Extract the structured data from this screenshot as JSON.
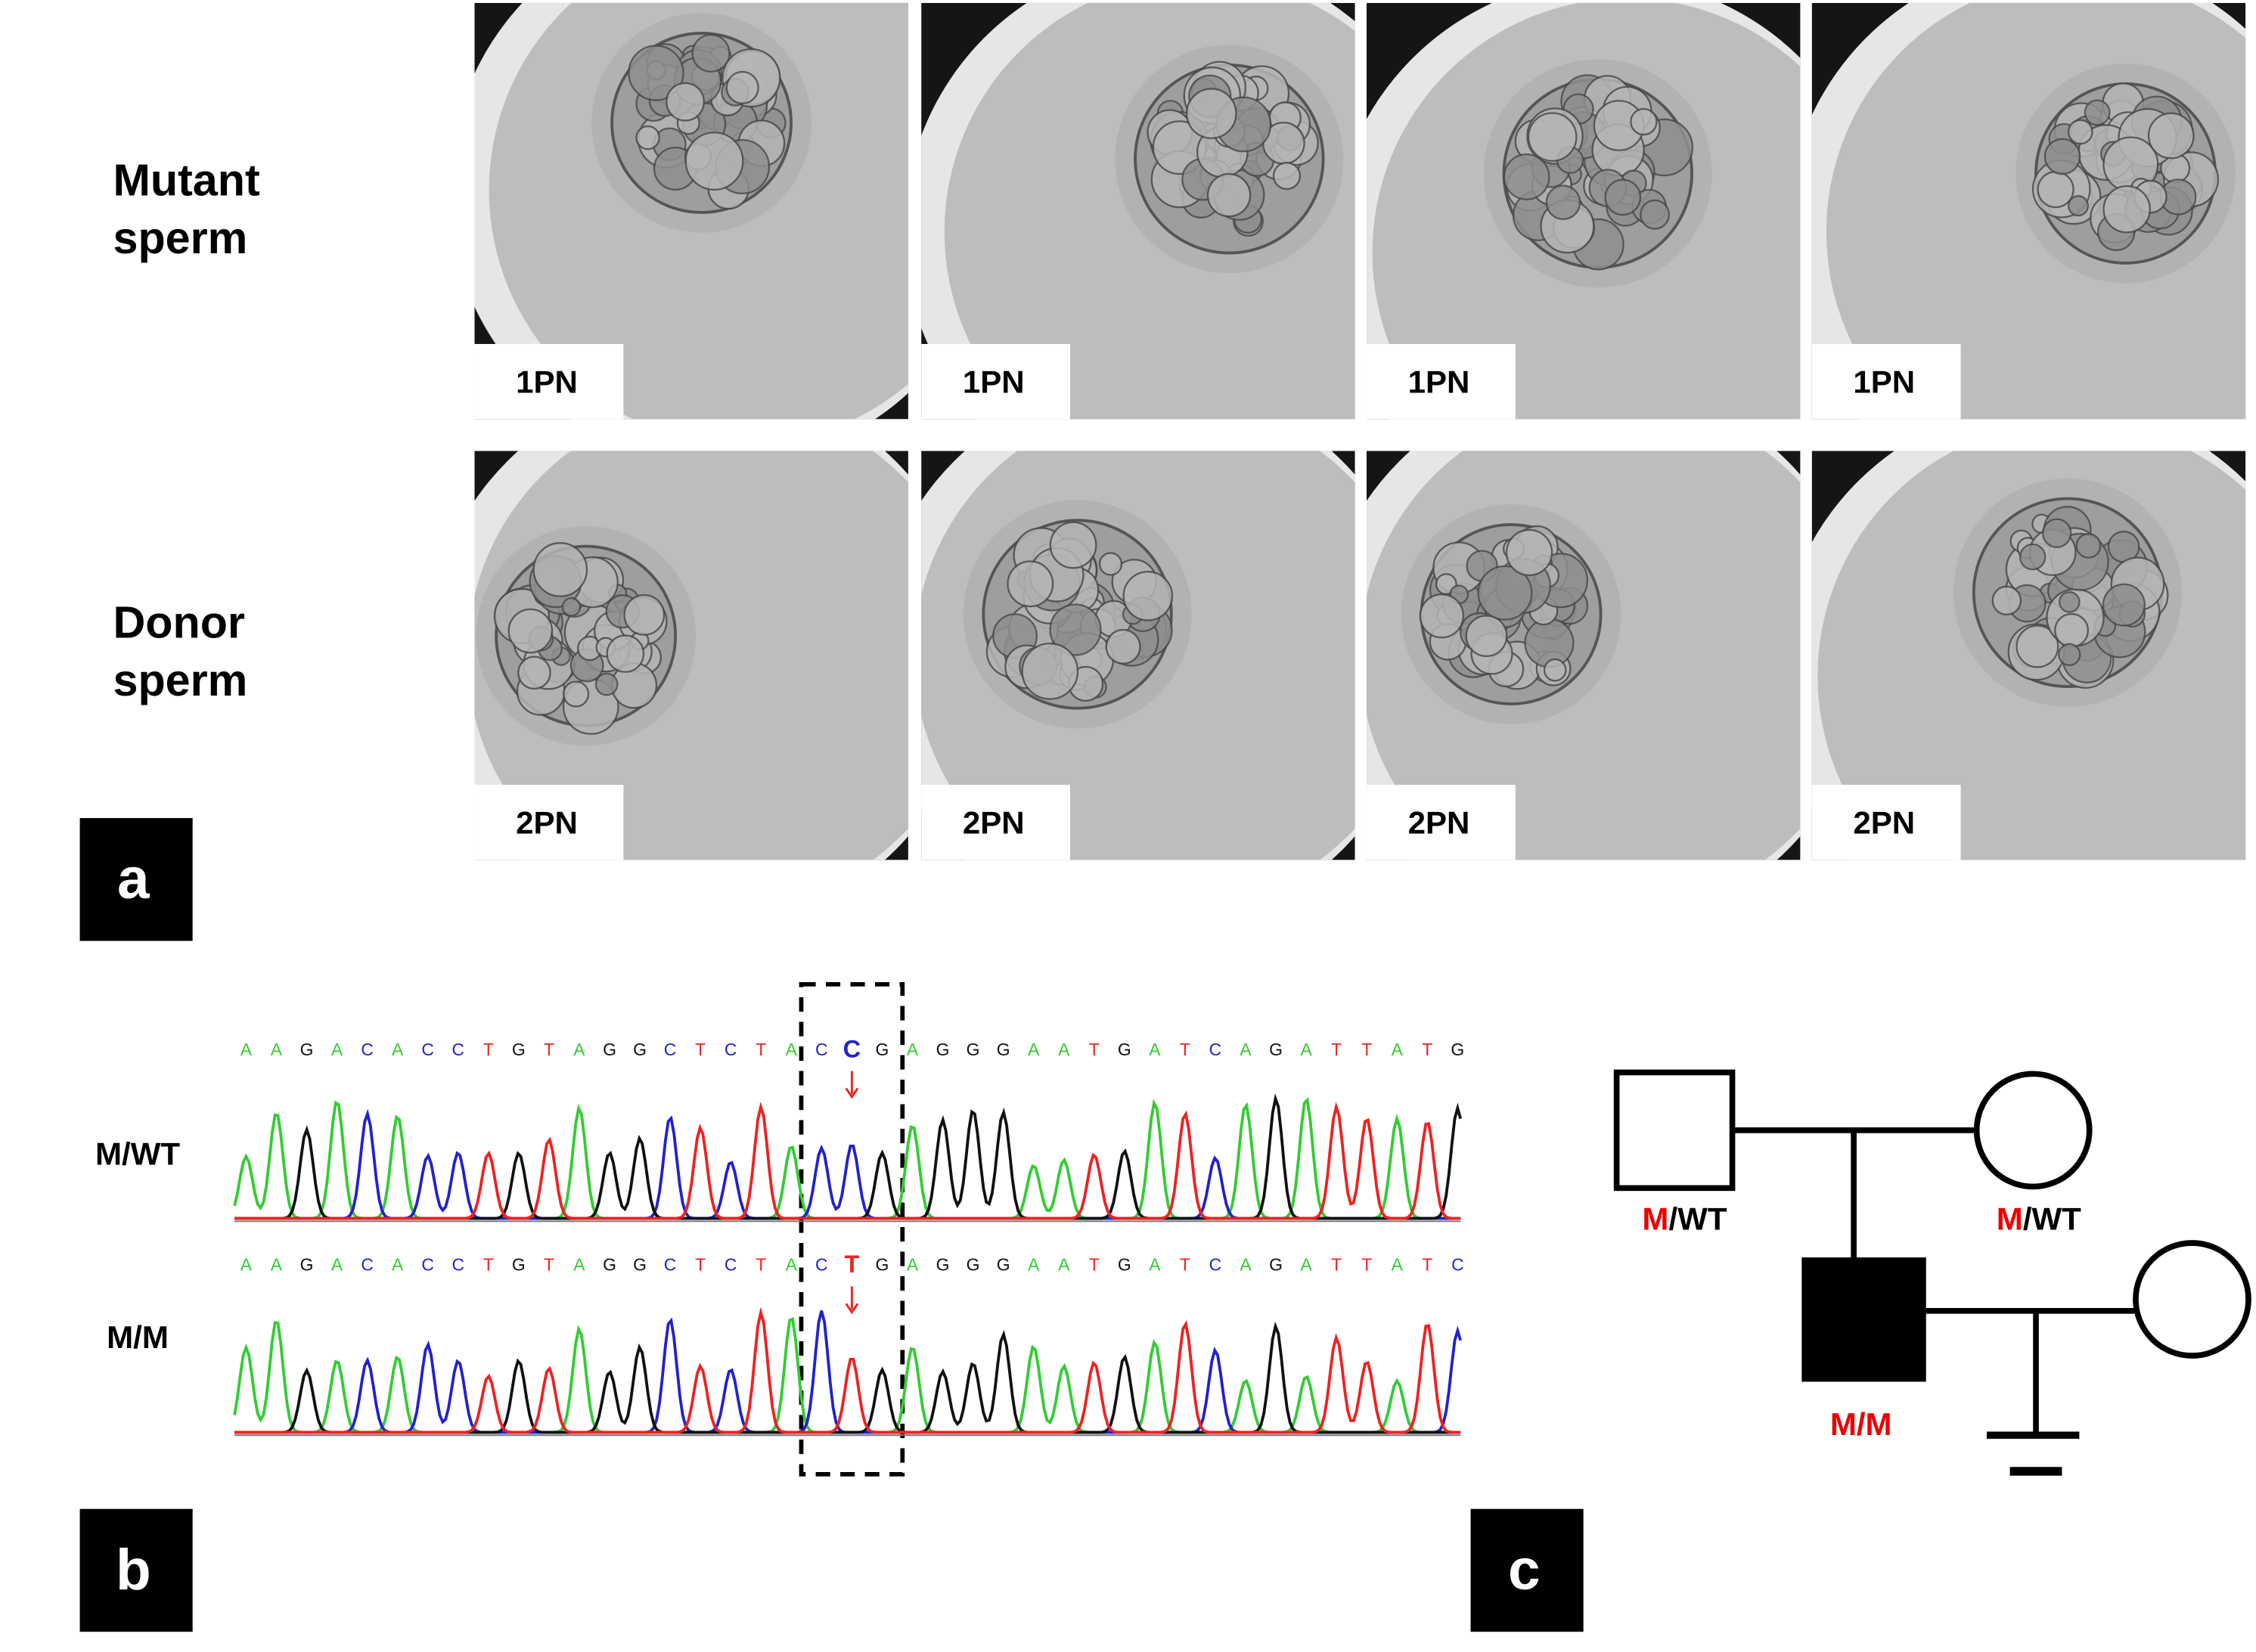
{
  "panel_labels": [
    "a",
    "b",
    "c"
  ],
  "micrographs": {
    "row_labels": [
      [
        "Mutant",
        "sperm"
      ],
      [
        "Donor",
        "sperm"
      ]
    ],
    "stage_labels": [
      [
        "1PN",
        "1PN",
        "1PN",
        "1PN"
      ],
      [
        "2PN",
        "2PN",
        "2PN",
        "2PN"
      ]
    ]
  },
  "sequencing": {
    "rows": [
      {
        "label": "M/WT",
        "before": [
          "A",
          "A",
          "G",
          "A",
          "C",
          "A",
          "C",
          "C",
          "T",
          "G",
          "T",
          "A",
          "G",
          "G",
          "C",
          "T",
          "C",
          "T",
          "A",
          "C"
        ],
        "variant": "C",
        "after": [
          "G",
          "A",
          "G",
          "G",
          "G",
          "A",
          "A",
          "T",
          "G",
          "A",
          "T",
          "C",
          "A",
          "G",
          "A",
          "T",
          "T",
          "A",
          "T",
          "G"
        ]
      },
      {
        "label": "M/M",
        "before": [
          "A",
          "A",
          "G",
          "A",
          "C",
          "A",
          "C",
          "C",
          "T",
          "G",
          "T",
          "A",
          "G",
          "G",
          "C",
          "T",
          "C",
          "T",
          "A",
          "C"
        ],
        "variant": "T",
        "after": [
          "G",
          "A",
          "G",
          "G",
          "G",
          "A",
          "A",
          "T",
          "G",
          "A",
          "T",
          "C",
          "A",
          "G",
          "A",
          "T",
          "T",
          "A",
          "T",
          "C"
        ]
      }
    ]
  },
  "pedigree": {
    "genotypes": [
      {
        "allele": "M",
        "rest": "/WT"
      },
      {
        "allele": "M",
        "rest": "/WT"
      },
      {
        "text": "M/M"
      }
    ]
  }
}
